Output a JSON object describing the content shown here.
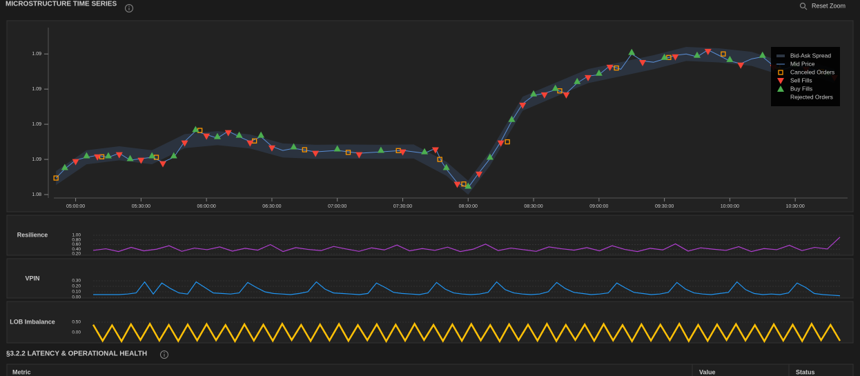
{
  "header": {
    "title": "MICROSTRUCTURE TIME SERIES",
    "reset": "Reset Zoom"
  },
  "chart_data": [
    {
      "type": "scatter",
      "xlim": [
        290,
        654
      ],
      "ylim": [
        1.084,
        1.0935
      ],
      "xticks": [
        {
          "value": 300,
          "label": "05:00:00"
        },
        {
          "value": 330,
          "label": "05:30:00"
        },
        {
          "value": 360,
          "label": "06:00:00"
        },
        {
          "value": 390,
          "label": "06:30:00"
        },
        {
          "value": 420,
          "label": "07:00:00"
        },
        {
          "value": 450,
          "label": "07:30:00"
        },
        {
          "value": 480,
          "label": "08:00:00"
        },
        {
          "value": 510,
          "label": "08:30:00"
        },
        {
          "value": 540,
          "label": "09:00:00"
        },
        {
          "value": 570,
          "label": "09:30:00"
        },
        {
          "value": 600,
          "label": "10:00:00"
        },
        {
          "value": 630,
          "label": "10:30:00"
        }
      ],
      "yticks": [
        {
          "value": 1.084,
          "label": "1.08"
        },
        {
          "value": 1.086,
          "label": "1.09"
        },
        {
          "value": 1.088,
          "label": "1.09"
        },
        {
          "value": 1.09,
          "label": "1.09"
        },
        {
          "value": 1.092,
          "label": "1.09"
        }
      ],
      "legend": "top-right",
      "series": [
        {
          "name": "Bid-Ask Spread",
          "color": "#2c3542",
          "marker": "band",
          "x": [
            291,
            305,
            320,
            335,
            350,
            365,
            380,
            395,
            410,
            425,
            440,
            455,
            470,
            480,
            490,
            505,
            520,
            535,
            550,
            565,
            580,
            595,
            610,
            625,
            640,
            648
          ],
          "low": [
            1.08454,
            1.08572,
            1.08595,
            1.08572,
            1.08664,
            1.08681,
            1.08662,
            1.08611,
            1.08603,
            1.08605,
            1.08603,
            1.08605,
            1.08507,
            1.08399,
            1.08564,
            1.08877,
            1.08956,
            1.09034,
            1.09073,
            1.09113,
            1.0916,
            1.09152,
            1.09132,
            1.09073,
            1.09066,
            1.09034
          ],
          "high": [
            1.08534,
            1.08652,
            1.08675,
            1.08652,
            1.08744,
            1.08761,
            1.08742,
            1.08691,
            1.08683,
            1.08685,
            1.08683,
            1.08685,
            1.08587,
            1.08479,
            1.08644,
            1.08957,
            1.09036,
            1.09114,
            1.09153,
            1.09193,
            1.0924,
            1.09232,
            1.09212,
            1.09153,
            1.09146,
            1.09114
          ]
        },
        {
          "name": "Mid Price",
          "color": "#5b8fd6",
          "marker": "line",
          "x": [
            291,
            295,
            300,
            305,
            310,
            315,
            320,
            325,
            330,
            335,
            340,
            345,
            350,
            355,
            360,
            365,
            370,
            375,
            380,
            385,
            390,
            395,
            400,
            410,
            420,
            430,
            440,
            450,
            460,
            465,
            468,
            470,
            475,
            480,
            485,
            490,
            495,
            500,
            505,
            510,
            515,
            520,
            525,
            530,
            535,
            540,
            545,
            550,
            555,
            560,
            565,
            570,
            575,
            580,
            585,
            590,
            595,
            600,
            605,
            610,
            615,
            620,
            625,
            630,
            635,
            640,
            645,
            648
          ],
          "values": [
            1.08494,
            1.08545,
            1.08596,
            1.08612,
            1.08623,
            1.08612,
            1.08635,
            1.08596,
            1.08604,
            1.08612,
            1.08584,
            1.08612,
            1.08702,
            1.08761,
            1.08741,
            1.08721,
            1.08761,
            1.08729,
            1.08702,
            1.08729,
            1.08674,
            1.08651,
            1.08663,
            1.08643,
            1.08651,
            1.08635,
            1.08643,
            1.08651,
            1.08635,
            1.08663,
            1.08584,
            1.08545,
            1.08467,
            1.08439,
            1.08525,
            1.08604,
            1.08702,
            1.08819,
            1.08917,
            1.08964,
            1.08976,
            1.08996,
            1.08976,
            1.09035,
            1.09074,
            1.09082,
            1.09133,
            1.09113,
            1.092,
            1.0916,
            1.09153,
            1.09172,
            1.09192,
            1.092,
            1.09184,
            1.09223,
            1.09192,
            1.0916,
            1.09145,
            1.09172,
            1.09184,
            1.09133,
            1.09113,
            1.09133,
            1.09121,
            1.09106,
            1.09082,
            1.09074
          ]
        },
        {
          "name": "Canceled Orders",
          "color": "#ff9800",
          "marker": "square",
          "x": [
            291,
            312,
            337,
            357,
            382,
            405,
            425,
            448,
            467,
            478,
            498,
            522,
            548,
            572,
            597,
            622,
            642
          ],
          "values": [
            1.08494,
            1.08615,
            1.08612,
            1.08765,
            1.08705,
            1.08655,
            1.0864,
            1.0865,
            1.086,
            1.0846,
            1.087,
            1.0899,
            1.0912,
            1.0918,
            1.092,
            1.0913,
            1.091
          ]
        },
        {
          "name": "Sell Fills",
          "color": "#f44336",
          "marker": "triangle-down",
          "x": [
            300,
            310,
            320,
            330,
            340,
            350,
            360,
            370,
            380,
            390,
            410,
            430,
            450,
            465,
            475,
            485,
            495,
            505,
            515,
            525,
            535,
            545,
            560,
            575,
            590,
            605,
            620,
            635,
            648
          ],
          "values": [
            1.08586,
            1.08613,
            1.08625,
            1.08594,
            1.08574,
            1.08692,
            1.08731,
            1.08751,
            1.08692,
            1.08664,
            1.08633,
            1.08625,
            1.08641,
            1.08653,
            1.08457,
            1.08515,
            1.08692,
            1.08907,
            1.08966,
            1.08966,
            1.09064,
            1.09123,
            1.0915,
            1.09182,
            1.09213,
            1.09135,
            1.09123,
            1.09111,
            1.09064
          ]
        },
        {
          "name": "Buy Fills",
          "color": "#4caf50",
          "marker": "triangle-up",
          "x": [
            295,
            305,
            315,
            325,
            335,
            345,
            355,
            365,
            375,
            385,
            400,
            420,
            440,
            460,
            470,
            480,
            490,
            500,
            510,
            520,
            530,
            540,
            555,
            570,
            585,
            600,
            615,
            630,
            645
          ],
          "values": [
            1.08555,
            1.08622,
            1.08622,
            1.08606,
            1.08622,
            1.08622,
            1.08771,
            1.08731,
            1.08739,
            1.08739,
            1.08673,
            1.08661,
            1.08653,
            1.08645,
            1.08555,
            1.08449,
            1.08614,
            1.08829,
            1.08974,
            1.09006,
            1.09045,
            1.09092,
            1.0921,
            1.09182,
            1.09194,
            1.0917,
            1.09194,
            1.09143,
            1.09092
          ]
        },
        {
          "name": "Rejected Orders",
          "marker": "none"
        }
      ]
    },
    {
      "type": "line",
      "title": "Resilience",
      "color": "#b03fd0",
      "ylim": [
        0.2,
        1.0
      ],
      "yticks": [
        {
          "value": 1.0,
          "label": "1.00"
        },
        {
          "value": 0.8,
          "label": "0.80"
        },
        {
          "value": 0.6,
          "label": "0.60"
        },
        {
          "value": 0.4,
          "label": "0.40"
        },
        {
          "value": 0.2,
          "label": "0.20"
        }
      ],
      "values": [
        0.35,
        0.42,
        0.3,
        0.48,
        0.33,
        0.4,
        0.55,
        0.31,
        0.45,
        0.38,
        0.5,
        0.32,
        0.44,
        0.36,
        0.6,
        0.3,
        0.47,
        0.39,
        0.34,
        0.52,
        0.41,
        0.31,
        0.46,
        0.37,
        0.58,
        0.33,
        0.43,
        0.35,
        0.49,
        0.3,
        0.4,
        0.62,
        0.34,
        0.45,
        0.38,
        0.31,
        0.5,
        0.42,
        0.36,
        0.47,
        0.33,
        0.55,
        0.39,
        0.3,
        0.44,
        0.37,
        0.63,
        0.32,
        0.46,
        0.4,
        0.35,
        0.51,
        0.3,
        0.43,
        0.38,
        0.57,
        0.34,
        0.48,
        0.41,
        0.92
      ]
    },
    {
      "type": "line",
      "title": "VPIN",
      "color": "#2196f3",
      "ylim": [
        0,
        0.3
      ],
      "yticks": [
        {
          "value": 0.3,
          "label": "0.30"
        },
        {
          "value": 0.2,
          "label": "0.20"
        },
        {
          "value": 0.1,
          "label": "0.10"
        },
        {
          "value": 0,
          "label": "0.00"
        }
      ],
      "values": [
        0.05,
        0.05,
        0.05,
        0.05,
        0.06,
        0.08,
        0.28,
        0.06,
        0.26,
        0.16,
        0.08,
        0.06,
        0.28,
        0.18,
        0.08,
        0.07,
        0.06,
        0.08,
        0.27,
        0.18,
        0.1,
        0.07,
        0.06,
        0.05,
        0.07,
        0.1,
        0.28,
        0.15,
        0.08,
        0.07,
        0.06,
        0.05,
        0.07,
        0.26,
        0.18,
        0.09,
        0.07,
        0.06,
        0.05,
        0.08,
        0.27,
        0.15,
        0.08,
        0.06,
        0.05,
        0.06,
        0.09,
        0.28,
        0.14,
        0.08,
        0.06,
        0.05,
        0.06,
        0.1,
        0.27,
        0.16,
        0.09,
        0.07,
        0.05,
        0.06,
        0.08,
        0.26,
        0.17,
        0.09,
        0.07,
        0.05,
        0.06,
        0.09,
        0.27,
        0.15,
        0.08,
        0.06,
        0.05,
        0.07,
        0.09,
        0.28,
        0.14,
        0.07,
        0.05,
        0.06,
        0.05,
        0.08,
        0.26,
        0.18,
        0.07,
        0.05,
        0.04,
        0.03
      ]
    },
    {
      "type": "line",
      "title": "LOB Imbalance",
      "color": "#ffc107",
      "ylim": [
        -0.5,
        0.5
      ],
      "yticks": [
        {
          "value": 0.5,
          "label": "0.50"
        },
        {
          "value": 0,
          "label": "0.00"
        }
      ],
      "values": [
        0.38,
        -0.4,
        0.35,
        -0.42,
        0.4,
        -0.36,
        0.42,
        -0.39,
        0.37,
        -0.41,
        0.39,
        -0.38,
        0.41,
        -0.37,
        0.36,
        -0.42,
        0.4,
        -0.39,
        0.38,
        -0.4,
        0.42,
        -0.36,
        0.37,
        -0.41,
        0.39,
        -0.38,
        0.41,
        -0.4,
        0.36,
        -0.37,
        0.4,
        -0.42,
        0.38,
        -0.39,
        0.42,
        -0.36,
        0.37,
        -0.41,
        0.39,
        -0.4,
        0.41,
        -0.38,
        0.36,
        -0.42,
        0.4,
        -0.37,
        0.38,
        -0.39,
        0.42,
        -0.41,
        0.37,
        -0.36,
        0.39,
        -0.4,
        0.41,
        -0.38,
        0.36,
        -0.42,
        0.4,
        -0.39,
        0.38,
        -0.37,
        0.42,
        -0.41,
        0.37,
        -0.4,
        0.39,
        -0.36,
        0.41,
        -0.38,
        0.36,
        -0.42,
        0.4,
        -0.39,
        0.38,
        -0.41,
        0.42,
        -0.37,
        0.37,
        -0.4
      ]
    }
  ],
  "section": {
    "title": "§3.2.2  LATENCY & OPERATIONAL HEALTH",
    "table": {
      "columns": [
        "Metric",
        "Value",
        "Status"
      ]
    }
  }
}
